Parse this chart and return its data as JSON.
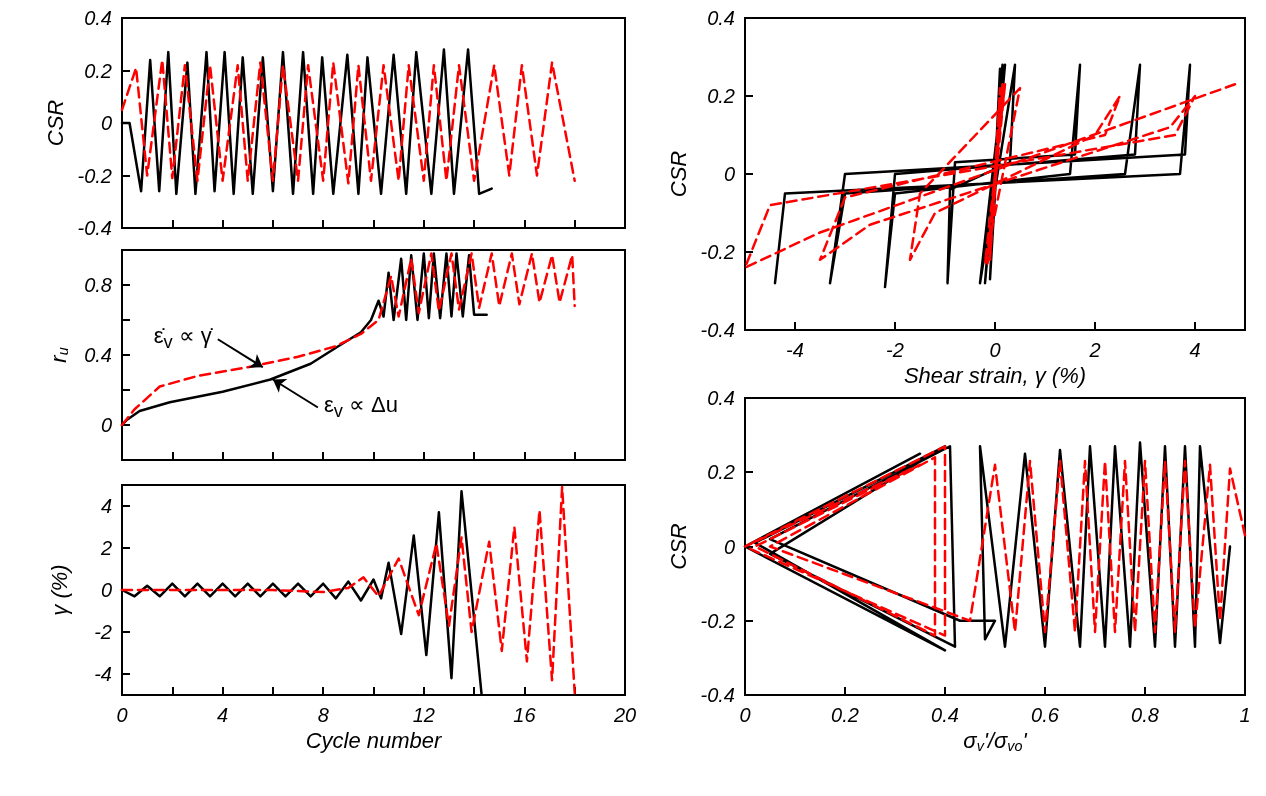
{
  "chart_data": [
    {
      "type": "line",
      "ylabel": "CSR",
      "xlim": [
        0,
        20
      ],
      "ylim": [
        -0.4,
        0.4
      ],
      "xticks": [
        2,
        4,
        6,
        8,
        10,
        12,
        14,
        16,
        18
      ],
      "yticks": [
        -0.4,
        -0.2,
        0,
        0.2,
        0.4
      ],
      "tick_labels": "y",
      "marker": "none",
      "series": [
        {
          "color": "#000000",
          "line_style": "solid",
          "x": [
            0,
            0.3,
            0.76,
            1.12,
            1.48,
            1.84,
            2.16,
            2.6,
            2.92,
            3.36,
            3.68,
            4.08,
            4.44,
            4.8,
            5.2,
            5.6,
            6.0,
            6.4,
            6.8,
            7.2,
            7.6,
            7.96,
            8.4,
            8.96,
            9.4,
            9.76,
            10.3,
            10.8,
            11.3,
            11.7,
            12.3,
            12.8,
            13.2,
            13.76,
            14.2,
            14.7
          ],
          "values": [
            0,
            0,
            -0.26,
            0.24,
            -0.26,
            0.27,
            -0.27,
            0.23,
            -0.27,
            0.27,
            -0.26,
            0.27,
            -0.27,
            0.25,
            -0.27,
            0.25,
            -0.26,
            0.27,
            -0.27,
            0.27,
            -0.27,
            0.25,
            -0.27,
            0.26,
            -0.27,
            0.25,
            -0.27,
            0.26,
            -0.27,
            0.27,
            -0.27,
            0.28,
            -0.27,
            0.28,
            -0.27,
            -0.25
          ]
        },
        {
          "color": "#ff0000",
          "line_style": "dashed",
          "x": [
            0,
            0.56,
            1.0,
            1.6,
            2.0,
            2.5,
            3.0,
            3.5,
            4.0,
            4.6,
            5.0,
            5.5,
            6.0,
            6.4,
            7.0,
            7.4,
            8.0,
            8.4,
            9.0,
            9.4,
            9.9,
            10.4,
            11.0,
            11.4,
            12.0,
            12.4,
            12.9,
            13.4,
            14.0,
            14.8,
            15.4,
            15.9,
            16.5,
            17.1,
            18.0
          ],
          "values": [
            0.05,
            0.21,
            -0.2,
            0.24,
            -0.21,
            0.22,
            -0.22,
            0.22,
            -0.22,
            0.22,
            -0.22,
            0.23,
            -0.22,
            0.22,
            -0.22,
            0.22,
            -0.22,
            0.23,
            -0.23,
            0.22,
            -0.22,
            0.22,
            -0.22,
            0.22,
            -0.22,
            0.22,
            -0.22,
            0.22,
            -0.22,
            0.22,
            -0.2,
            0.22,
            -0.2,
            0.23,
            -0.22
          ]
        }
      ]
    },
    {
      "type": "line",
      "ylabel": "r$_{u}$",
      "xlim": [
        0,
        20
      ],
      "ylim": [
        -0.2,
        1.0
      ],
      "xticks": [
        2,
        4,
        6,
        8,
        10,
        12,
        14,
        16,
        18
      ],
      "yticks": [
        0,
        {
          "value": 0.2,
          "label": null
        },
        0.4,
        {
          "value": 0.6,
          "label": null
        },
        0.8
      ],
      "tick_labels": "y",
      "marker": "none",
      "series": [
        {
          "color": "#000000",
          "line_style": "solid",
          "x": [
            0,
            0.2,
            0.7,
            1.9,
            4,
            5.9,
            7.5,
            8.6,
            9.5,
            9.9,
            10.2,
            10.4,
            10.6,
            10.8,
            11.1,
            11.3,
            11.5,
            11.75,
            12.0,
            12.2,
            12.4,
            12.65,
            12.9,
            13.1,
            13.3,
            13.55,
            13.8,
            14.0,
            14.5
          ],
          "values": [
            0,
            0.03,
            0.08,
            0.13,
            0.19,
            0.26,
            0.35,
            0.45,
            0.53,
            0.6,
            0.71,
            0.62,
            0.87,
            0.6,
            0.95,
            0.6,
            0.97,
            0.6,
            0.98,
            0.61,
            0.98,
            0.61,
            0.98,
            0.62,
            0.98,
            0.62,
            0.97,
            0.63,
            0.63
          ]
        },
        {
          "color": "#ff0000",
          "line_style": "dashed",
          "x": [
            0,
            0.5,
            1.5,
            3,
            5,
            7,
            8.5,
            9.5,
            10.2,
            10.7,
            11.0,
            11.5,
            11.8,
            12.3,
            12.6,
            13.1,
            13.4,
            13.9,
            14.2,
            14.7,
            15.0,
            15.5,
            15.8,
            16.3,
            16.6,
            17.1,
            17.4,
            17.9,
            18
          ],
          "values": [
            0,
            0.09,
            0.22,
            0.28,
            0.33,
            0.39,
            0.45,
            0.52,
            0.6,
            0.85,
            0.62,
            0.95,
            0.64,
            0.98,
            0.65,
            0.98,
            0.66,
            0.98,
            0.67,
            0.98,
            0.68,
            0.98,
            0.69,
            0.98,
            0.7,
            0.97,
            0.7,
            0.97,
            0.68
          ]
        }
      ],
      "annotations": [
        {
          "text": "ε̇$_{v}$ ∝ γ̇",
          "x": 5.6,
          "y": 0.33
        },
        {
          "text": "ε$_{v}$ ∝ Δu",
          "x": 6.0,
          "y": 0.26
        }
      ]
    },
    {
      "type": "line",
      "ylabel": "γ (%)",
      "xlabel": "Cycle number",
      "xlim": [
        0,
        20
      ],
      "ylim": [
        -5,
        5
      ],
      "xticks": [
        0,
        {
          "value": 2,
          "label": null
        },
        4,
        {
          "value": 6,
          "label": null
        },
        8,
        {
          "value": 10,
          "label": null
        },
        12,
        {
          "value": 14,
          "label": null
        },
        16,
        {
          "value": 18,
          "label": null
        },
        20
      ],
      "yticks": [
        -4,
        -2,
        0,
        2,
        4
      ],
      "marker": "none",
      "series": [
        {
          "color": "#000000",
          "line_style": "solid",
          "x": [
            0,
            0.5,
            1,
            1.5,
            2,
            2.5,
            3,
            3.5,
            4,
            4.5,
            5,
            5.5,
            6,
            6.5,
            7,
            7.5,
            8,
            8.5,
            9,
            9.5,
            10,
            10.3,
            10.6,
            11.1,
            11.6,
            12.1,
            12.6,
            13.1,
            13.5,
            14.3
          ],
          "values": [
            0,
            -0.3,
            0.2,
            -0.3,
            0.3,
            -0.3,
            0.3,
            -0.3,
            0.3,
            -0.3,
            0.3,
            -0.3,
            0.3,
            -0.3,
            0.3,
            -0.3,
            0.3,
            -0.4,
            0.4,
            -0.5,
            0.5,
            -0.4,
            1.3,
            -2.1,
            2.6,
            -3.1,
            3.7,
            -4.2,
            4.7,
            -5
          ]
        },
        {
          "color": "#ff0000",
          "line_style": "dashed",
          "x": [
            0,
            2,
            4,
            6,
            8,
            9,
            9.6,
            10.2,
            11,
            11.8,
            12.5,
            13,
            13.5,
            13.9,
            14.6,
            15.1,
            15.6,
            16.1,
            16.6,
            17.1,
            17.5,
            18
          ],
          "values": [
            0,
            0,
            0,
            0,
            -0.1,
            0.1,
            0.6,
            -0.3,
            1.5,
            -1.2,
            2.2,
            -1.7,
            2.5,
            -2.0,
            2.3,
            -2.9,
            3.0,
            -3.4,
            3.8,
            -4.3,
            4.9,
            -4.9
          ]
        }
      ]
    },
    {
      "type": "line",
      "ylabel": "CSR",
      "xlabel": "Shear strain, γ (%)",
      "xlim": [
        -5,
        5
      ],
      "ylim": [
        -0.4,
        0.4
      ],
      "xticks": [
        -4,
        -2,
        0,
        2,
        4
      ],
      "yticks": [
        -0.4,
        -0.2,
        0,
        0.2,
        0.4
      ],
      "marker": "none",
      "series": [
        {
          "color": "#000000",
          "line_style": "solid",
          "x": [
            0,
            0.1,
            -0.1,
            0.15,
            -0.2,
            0.2,
            -0.3,
            0.4,
            0.3,
            -0.9,
            -0.95,
            -0.8,
            1.6,
            1.7,
            1.5,
            -2.0,
            -2.2,
            -2.0,
            2.8,
            2.9,
            2.6,
            -3.0,
            -3.3,
            -3.0,
            3.8,
            3.9,
            3.7,
            -4.2,
            -4.4
          ],
          "values": [
            0,
            0.27,
            -0.27,
            0.28,
            -0.28,
            0.28,
            -0.28,
            0.28,
            0.03,
            -0.04,
            -0.28,
            0.03,
            0.05,
            0.28,
            0.0,
            -0.05,
            -0.29,
            0.0,
            0.05,
            0.28,
            0.0,
            -0.05,
            -0.28,
            0.0,
            0.05,
            0.28,
            0.0,
            -0.05,
            -0.28
          ]
        },
        {
          "color": "#ff0000",
          "line_style": "dashed",
          "x": [
            0,
            0.1,
            -0.1,
            0.15,
            -0.15,
            0.2,
            -0.2,
            0.5,
            -1.5,
            -1.7,
            -1.2,
            2.0,
            2.5,
            2.2,
            -3.0,
            -3.5,
            -2.5,
            3.5,
            4.0,
            3.6,
            -4.5,
            -5,
            -3.5,
            4.8
          ],
          "values": [
            0,
            0.22,
            -0.22,
            0.23,
            -0.23,
            0.23,
            -0.23,
            0.22,
            -0.05,
            -0.22,
            -0.1,
            0.1,
            0.2,
            0.1,
            -0.06,
            -0.22,
            -0.13,
            0.12,
            0.2,
            0.1,
            -0.08,
            -0.24,
            -0.15,
            0.23
          ]
        }
      ]
    },
    {
      "type": "line",
      "ylabel": "CSR",
      "xlabel": "σ$_{v}$'/σ$_{vo}$'",
      "xlim": [
        0,
        1
      ],
      "ylim": [
        -0.4,
        0.4
      ],
      "xticks": [
        0,
        0.2,
        0.4,
        0.6,
        0.8,
        1
      ],
      "yticks": [
        -0.4,
        -0.2,
        0,
        0.2,
        0.4
      ],
      "marker": "none",
      "series": [
        {
          "color": "#000000",
          "line_style": "solid",
          "x": [
            0.97,
            0.95,
            0.91,
            0.9,
            0.88,
            0.86,
            0.84,
            0.82,
            0.79,
            0.77,
            0.74,
            0.72,
            0.69,
            0.67,
            0.63,
            0.6,
            0.56,
            0.52,
            0.47,
            0.48,
            0.5,
            0.43,
            0.05,
            0.41,
            0.42,
            0.05,
            0.4,
            0.02,
            0.4,
            0,
            0.35,
            0
          ],
          "values": [
            0,
            -0.26,
            0.27,
            -0.27,
            0.27,
            -0.27,
            0.27,
            -0.27,
            0.28,
            -0.27,
            0.27,
            -0.27,
            0.27,
            -0.27,
            0.26,
            -0.27,
            0.25,
            -0.27,
            0.27,
            -0.25,
            -0.2,
            -0.2,
            0.02,
            0.27,
            -0.27,
            -0.02,
            0.27,
            0.01,
            -0.28,
            0,
            0.25,
            0
          ]
        },
        {
          "color": "#ff0000",
          "line_style": "dashed",
          "x": [
            1.0,
            0.97,
            0.95,
            0.93,
            0.9,
            0.88,
            0.86,
            0.84,
            0.82,
            0.8,
            0.78,
            0.76,
            0.74,
            0.72,
            0.7,
            0.68,
            0.66,
            0.63,
            0.6,
            0.57,
            0.54,
            0.5,
            0.45,
            0.05,
            0.38,
            0.38,
            0.02,
            0.35,
            0,
            0.4,
            0.4,
            0
          ],
          "values": [
            0.03,
            0.21,
            -0.2,
            0.22,
            -0.22,
            0.23,
            -0.23,
            0.23,
            -0.23,
            0.23,
            -0.23,
            0.23,
            -0.23,
            0.23,
            -0.23,
            0.23,
            -0.23,
            0.23,
            -0.23,
            0.23,
            -0.23,
            0.22,
            -0.2,
            0.0,
            0.24,
            -0.24,
            0.0,
            0.22,
            0.0,
            0.27,
            -0.24,
            0
          ]
        }
      ]
    }
  ]
}
